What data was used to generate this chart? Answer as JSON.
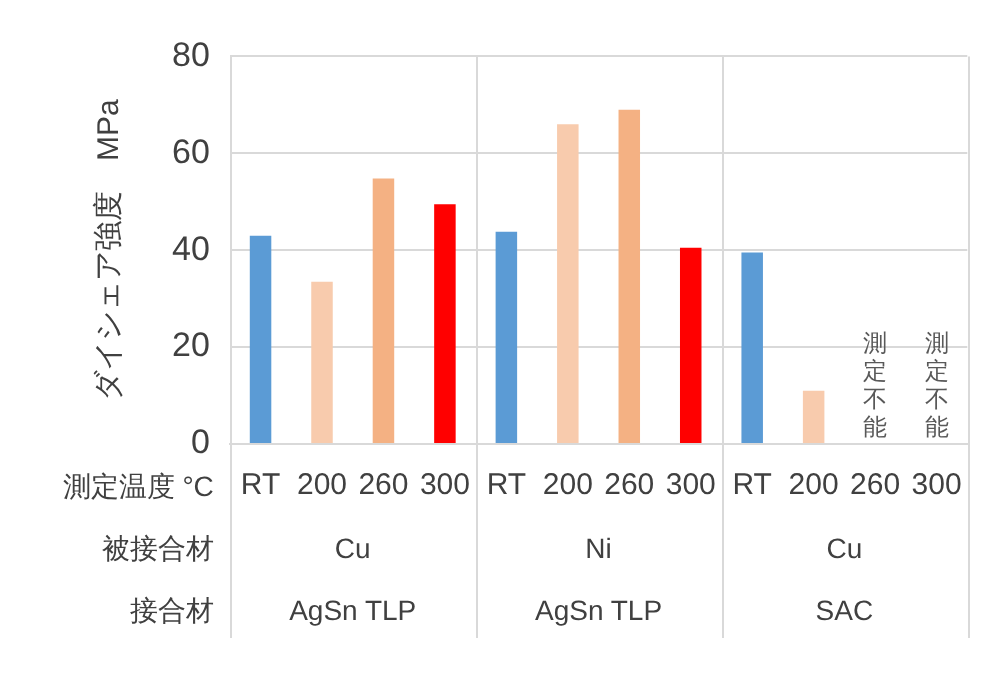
{
  "chart_data": {
    "type": "bar",
    "ylabel": "ダイシェア強度　MPa",
    "categories": [
      "RT",
      "200",
      "260",
      "300",
      "RT",
      "200",
      "260",
      "300",
      "RT",
      "200",
      "260",
      "300"
    ],
    "values": [
      43,
      33.5,
      54.8,
      49.5,
      43.8,
      66,
      69,
      40.5,
      39.5,
      11,
      null,
      null
    ],
    "colors": [
      "#5b9bd5",
      "#f8cbad",
      "#f4b183",
      "#ff0000",
      "#5b9bd5",
      "#f8cbad",
      "#f4b183",
      "#ff0000",
      "#5b9bd5",
      "#f8cbad",
      "#f4b183",
      "#ff0000"
    ],
    "ylim": [
      0,
      80
    ],
    "yticks": [
      0,
      20,
      40,
      60,
      80
    ],
    "grid": "y",
    "legend": false,
    "annotations": [
      "測定温度 °C",
      "被接合材",
      "接合材",
      "Cu",
      "Ni",
      "Cu",
      "AgSn TLP",
      "AgSn TLP",
      "SAC",
      "測定不能",
      "測定不能"
    ]
  }
}
